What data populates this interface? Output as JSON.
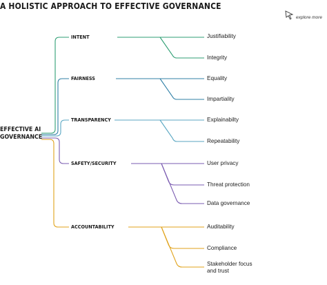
{
  "title": "A HOLISTIC APPROACH TO EFFECTIVE GOVERNANCE",
  "explore_label": "explore more",
  "root": {
    "line1": "EFFECTIVE AI",
    "line2": "GOVERNANCE"
  },
  "branches": [
    {
      "label": "INTENT",
      "color": "#2e9e73",
      "leaves": [
        "Justifiability",
        "Integrity"
      ]
    },
    {
      "label": "FAIRNESS",
      "color": "#2f7fa6",
      "leaves": [
        "Equality",
        "Impartiality"
      ]
    },
    {
      "label": "TRANSPARENCY",
      "color": "#58a6c2",
      "leaves": [
        "Explainabilty",
        "Repeatability"
      ]
    },
    {
      "label": "SAFETY/SECURITY",
      "color": "#7a5bb0",
      "leaves": [
        "User privacy",
        "Threat protection",
        "Data governance"
      ]
    },
    {
      "label": "ACCOUNTABILITY",
      "color": "#e0a21a",
      "leaves": [
        "Auditability",
        "Compliance",
        "Stakeholder focus and trust"
      ]
    }
  ]
}
